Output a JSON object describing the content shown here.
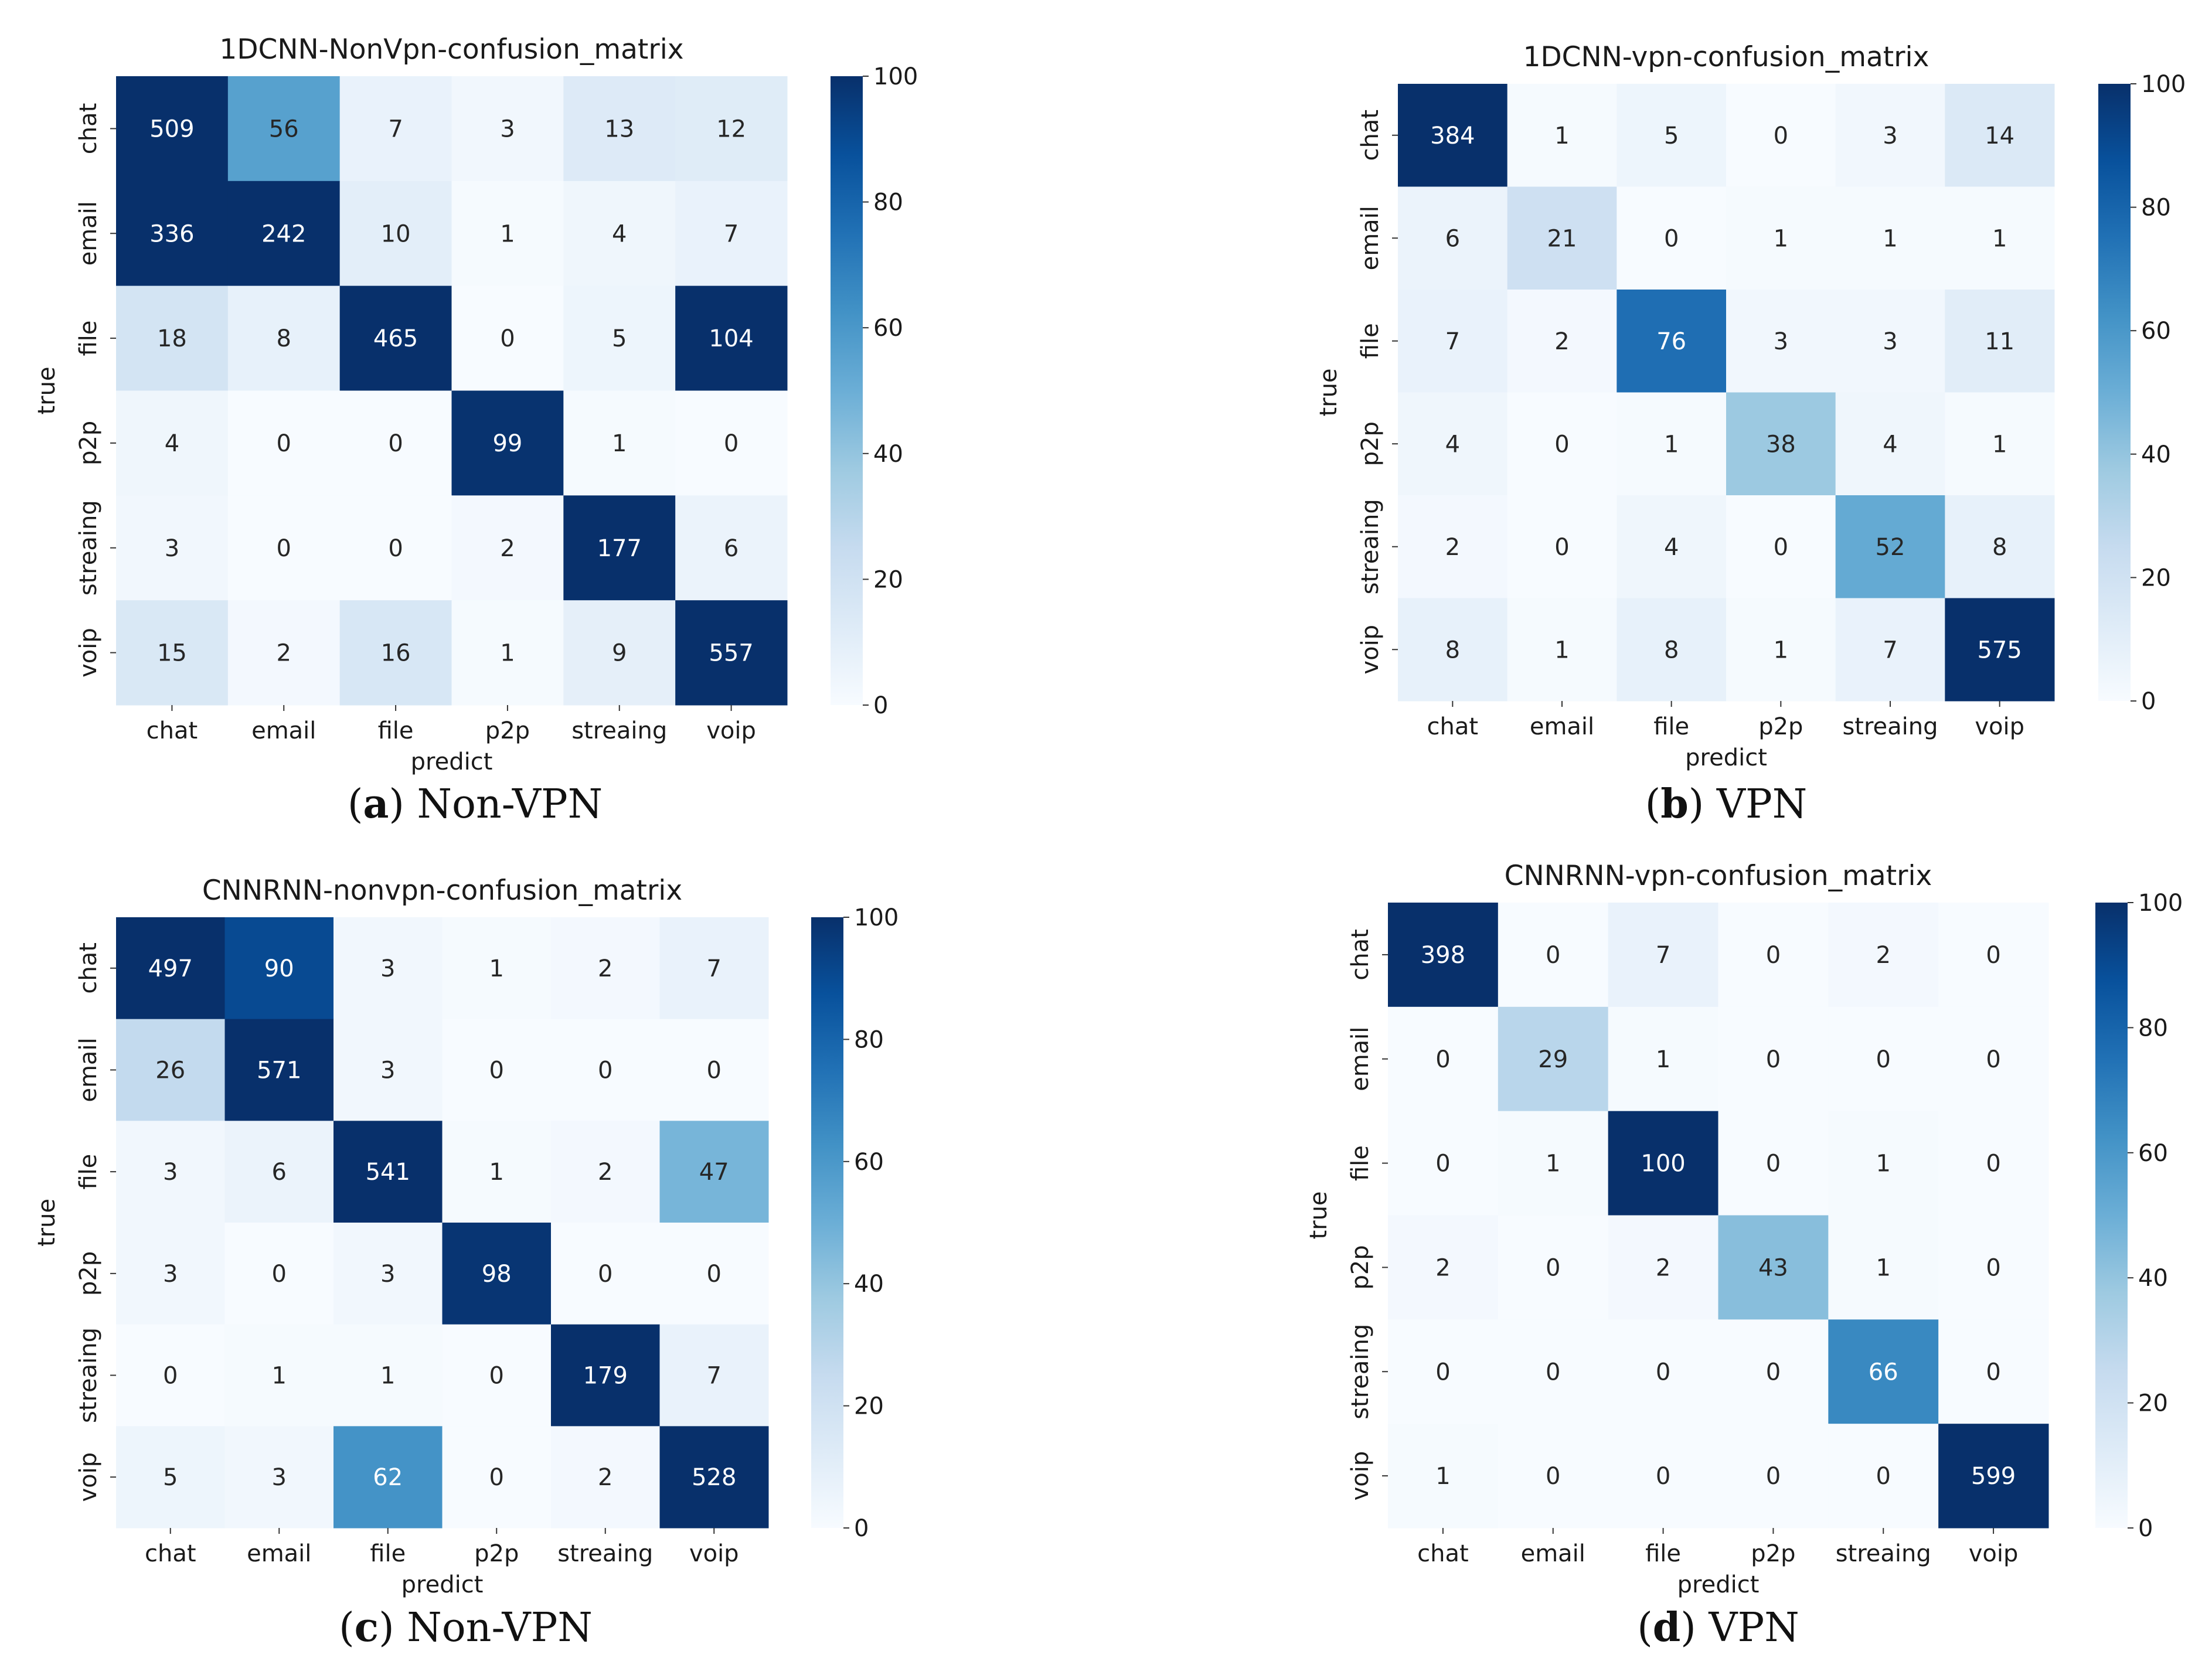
{
  "chart_data": [
    {
      "type": "heatmap",
      "title": "1DCNN-NonVpn-confusion_matrix",
      "caption_letter": "a",
      "caption_text": "Non-VPN",
      "xlabel": "predict",
      "ylabel": "true",
      "x_categories": [
        "chat",
        "email",
        "file",
        "p2p",
        "streaing",
        "voip"
      ],
      "y_categories": [
        "chat",
        "email",
        "file",
        "p2p",
        "streaing",
        "voip"
      ],
      "values": [
        [
          509,
          56,
          7,
          3,
          13,
          12
        ],
        [
          336,
          242,
          10,
          1,
          4,
          7
        ],
        [
          18,
          8,
          465,
          0,
          5,
          104
        ],
        [
          4,
          0,
          0,
          99,
          1,
          0
        ],
        [
          3,
          0,
          0,
          2,
          177,
          6
        ],
        [
          15,
          2,
          16,
          1,
          9,
          557
        ]
      ],
      "colorbar": {
        "min": 0,
        "max": 100,
        "ticks": [
          0,
          20,
          40,
          60,
          80,
          100
        ]
      },
      "colormap": "Blues"
    },
    {
      "type": "heatmap",
      "title": "1DCNN-vpn-confusion_matrix",
      "caption_letter": "b",
      "caption_text": "VPN",
      "xlabel": "predict",
      "ylabel": "true",
      "x_categories": [
        "chat",
        "email",
        "file",
        "p2p",
        "streaing",
        "voip"
      ],
      "y_categories": [
        "chat",
        "email",
        "file",
        "p2p",
        "streaing",
        "voip"
      ],
      "values": [
        [
          384,
          1,
          5,
          0,
          3,
          14
        ],
        [
          6,
          21,
          0,
          1,
          1,
          1
        ],
        [
          7,
          2,
          76,
          3,
          3,
          11
        ],
        [
          4,
          0,
          1,
          38,
          4,
          1
        ],
        [
          2,
          0,
          4,
          0,
          52,
          8
        ],
        [
          8,
          1,
          8,
          1,
          7,
          575
        ]
      ],
      "colorbar": {
        "min": 0,
        "max": 100,
        "ticks": [
          0,
          20,
          40,
          60,
          80,
          100
        ]
      },
      "colormap": "Blues"
    },
    {
      "type": "heatmap",
      "title": "CNNRNN-nonvpn-confusion_matrix",
      "caption_letter": "c",
      "caption_text": "Non-VPN",
      "xlabel": "predict",
      "ylabel": "true",
      "x_categories": [
        "chat",
        "email",
        "file",
        "p2p",
        "streaing",
        "voip"
      ],
      "y_categories": [
        "chat",
        "email",
        "file",
        "p2p",
        "streaing",
        "voip"
      ],
      "values": [
        [
          497,
          90,
          3,
          1,
          2,
          7
        ],
        [
          26,
          571,
          3,
          0,
          0,
          0
        ],
        [
          3,
          6,
          541,
          1,
          2,
          47
        ],
        [
          3,
          0,
          3,
          98,
          0,
          0
        ],
        [
          0,
          1,
          1,
          0,
          179,
          7
        ],
        [
          5,
          3,
          62,
          0,
          2,
          528
        ]
      ],
      "colorbar": {
        "min": 0,
        "max": 100,
        "ticks": [
          0,
          20,
          40,
          60,
          80,
          100
        ]
      },
      "colormap": "Blues"
    },
    {
      "type": "heatmap",
      "title": "CNNRNN-vpn-confusion_matrix",
      "caption_letter": "d",
      "caption_text": "VPN",
      "xlabel": "predict",
      "ylabel": "true",
      "x_categories": [
        "chat",
        "email",
        "file",
        "p2p",
        "streaing",
        "voip"
      ],
      "y_categories": [
        "chat",
        "email",
        "file",
        "p2p",
        "streaing",
        "voip"
      ],
      "values": [
        [
          398,
          0,
          7,
          0,
          2,
          0
        ],
        [
          0,
          29,
          1,
          0,
          0,
          0
        ],
        [
          0,
          1,
          100,
          0,
          1,
          0
        ],
        [
          2,
          0,
          2,
          43,
          1,
          0
        ],
        [
          0,
          0,
          0,
          0,
          66,
          0
        ],
        [
          1,
          0,
          0,
          0,
          0,
          599
        ]
      ],
      "colorbar": {
        "min": 0,
        "max": 100,
        "ticks": [
          0,
          20,
          40,
          60,
          80,
          100
        ]
      },
      "colormap": "Blues"
    }
  ]
}
